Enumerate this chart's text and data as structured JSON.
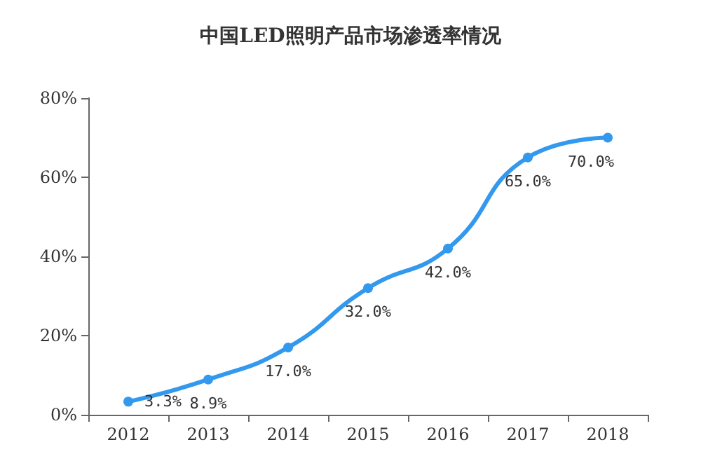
{
  "chart_data": {
    "type": "line",
    "title": "中国LED照明产品市场渗透率情况",
    "categories": [
      "2012",
      "2013",
      "2014",
      "2015",
      "2016",
      "2017",
      "2018"
    ],
    "series": [
      {
        "color": "#3399ee",
        "values": [
          3.3,
          8.9,
          17.0,
          32.0,
          42.0,
          65.0,
          70.0
        ],
        "value_labels": [
          "3.3%",
          "8.9%",
          "17.0%",
          "32.0%",
          "42.0%",
          "65.0%",
          "70.0%"
        ]
      }
    ],
    "ylim": [
      0,
      80
    ],
    "yticks": [
      {
        "value": 0,
        "label": "0%"
      },
      {
        "value": 20,
        "label": "20%"
      },
      {
        "value": 40,
        "label": "40%"
      },
      {
        "value": 60,
        "label": "60%"
      },
      {
        "value": 80,
        "label": "80%"
      }
    ],
    "grid": false,
    "marker": "circle",
    "line_style": "solid"
  }
}
